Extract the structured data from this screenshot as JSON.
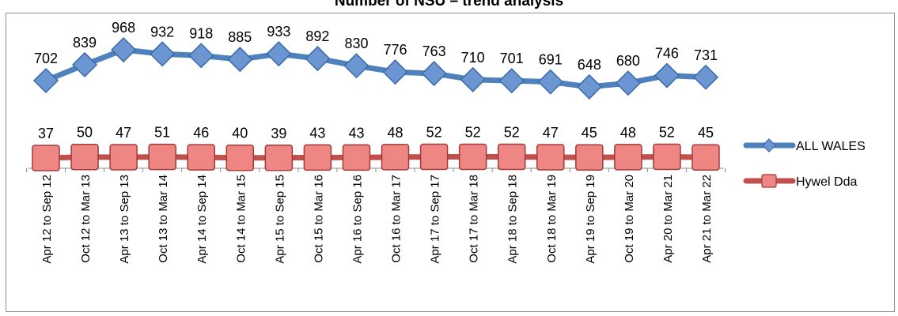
{
  "chart_data": {
    "type": "line",
    "title": "Number of NSU – trend analysis",
    "categories": [
      "Apr 12 to Sep 12",
      "Oct 12 to Mar 13",
      "Apr 13 to Sep 13",
      "Oct 13 to Mar 14",
      "Apr 14 to Sep 14",
      "Oct 14 to Mar 15",
      "Apr 15 to Sep 15",
      "Oct 15 to Mar 16",
      "Apr 16 to Sep 16",
      "Oct 16 to Mar 17",
      "Apr 17 to Sep 17",
      "Oct 17 to Mar 18",
      "Apr 18 to Sep 18",
      "Oct 18 to Mar 19",
      "Apr 19 to Sep 19",
      "Oct 19 to Mar 20",
      "Apr 20 to Mar 21",
      "Apr 21 to Mar 22"
    ],
    "series": [
      {
        "name": "ALL WALES",
        "color": "#4f81bd",
        "marker": "diamond",
        "values": [
          702,
          839,
          968,
          932,
          918,
          885,
          933,
          892,
          830,
          776,
          763,
          710,
          701,
          691,
          648,
          680,
          746,
          731
        ]
      },
      {
        "name": "Hywel Dda",
        "color": "#c0504d",
        "marker": "square",
        "values": [
          37,
          50,
          47,
          51,
          46,
          40,
          39,
          43,
          43,
          48,
          52,
          52,
          52,
          47,
          45,
          48,
          52,
          45
        ]
      }
    ],
    "data_labels": true,
    "legend_position": "right",
    "grid": false
  }
}
